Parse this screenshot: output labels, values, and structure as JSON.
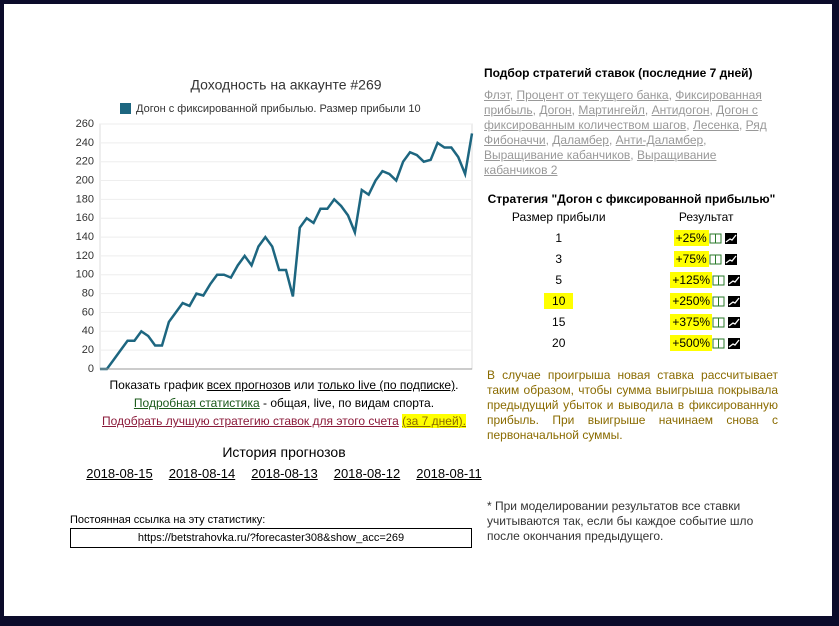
{
  "chart_data": {
    "type": "line",
    "title": "Доходность на аккаунте #269",
    "series": [
      {
        "name": "Догон с фиксированной прибылью. Размер прибыли 10",
        "color": "#1d6680",
        "values": [
          0,
          0,
          10,
          20,
          30,
          30,
          40,
          35,
          25,
          25,
          50,
          60,
          70,
          67,
          80,
          78,
          90,
          100,
          100,
          97,
          110,
          120,
          110,
          130,
          140,
          130,
          105,
          105,
          77,
          150,
          160,
          155,
          170,
          170,
          180,
          173,
          163,
          145,
          190,
          185,
          200,
          210,
          207,
          200,
          220,
          230,
          227,
          220,
          222,
          240,
          235,
          235,
          225,
          207,
          250
        ]
      }
    ],
    "ylim": [
      0,
      260
    ],
    "yticks": [
      0,
      20,
      40,
      60,
      80,
      100,
      120,
      140,
      160,
      180,
      200,
      220,
      240,
      260
    ],
    "grid": true
  },
  "chart_links": [
    [
      "Показать график ",
      "всех прогнозов",
      " или ",
      "только live (по подписке)",
      "."
    ],
    [
      "Подробная статистика",
      " - общая, live, по видам спорта."
    ],
    [
      "Подобрать лучшую стратегию ставок для этого счета",
      " ",
      "(за 7 дней)."
    ]
  ],
  "history": {
    "title": "История прогнозов",
    "dates": [
      "2018-08-15",
      "2018-08-14",
      "2018-08-13",
      "2018-08-12",
      "2018-08-11"
    ]
  },
  "permalink": {
    "label": "Постоянная ссылка на эту статистику:",
    "url": "https://betstrahovka.ru/?forecaster308&show_acc=269"
  },
  "strategies": {
    "title": "Подбор стратегий ставок (последние 7 дней)",
    "separator": ", ",
    "links": [
      "Флэт",
      "Процент от текущего банка",
      "Фиксированная прибыль",
      "Догон",
      "Мартингейл",
      "Антидогон",
      "Догон с фиксированным количеством шагов",
      "Лесенка",
      "Ряд Фибоначчи",
      "Даламбер",
      "Анти-Даламбер",
      "Выращивание кабанчиков",
      "Выращивание кабанчиков 2"
    ]
  },
  "table": {
    "title": "Стратегия \"Догон с фиксированной прибылью\"",
    "headers": [
      "Размер прибыли",
      "Результат"
    ],
    "rows": [
      [
        "1",
        "+25%"
      ],
      [
        "3",
        "+75%"
      ],
      [
        "5",
        "+125%"
      ],
      [
        "10",
        "+250%"
      ],
      [
        "15",
        "+375%"
      ],
      [
        "20",
        "+500%"
      ]
    ],
    "highlighted_row": 3
  },
  "description": "В случае проигрыша новая ставка рассчитывает таким образом, чтобы сумма выигрыша покрывала предыдущий убыток и выводила в фиксированную прибыль. При выигрыше начинаем снова с первоначальной суммы.",
  "footnote": "* При моделировании результатов все ставки учитываются так, если бы каждое событие шло после окончания предыдущего."
}
